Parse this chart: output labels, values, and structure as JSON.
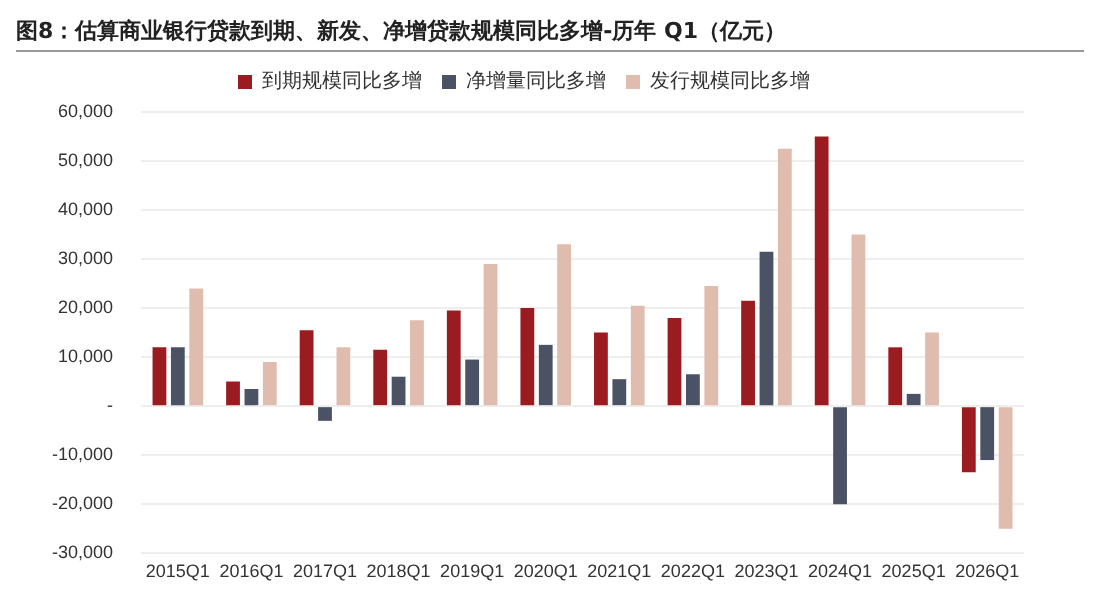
{
  "chart_data": {
    "type": "bar",
    "title": "图8：估算商业银行贷款到期、新发、净增贷款规模同比多增-历年 Q1（亿元）",
    "categories": [
      "2015Q1",
      "2016Q1",
      "2017Q1",
      "2018Q1",
      "2019Q1",
      "2020Q1",
      "2021Q1",
      "2022Q1",
      "2023Q1",
      "2024Q1",
      "2025Q1",
      "2026Q1"
    ],
    "series": [
      {
        "name": "到期规模同比多增",
        "color": "#9b1c20",
        "values": [
          12000,
          5000,
          15500,
          11500,
          19500,
          20000,
          15000,
          18000,
          21500,
          55000,
          12000,
          -13500
        ]
      },
      {
        "name": "净增量同比多增",
        "color": "#4a5263",
        "values": [
          12000,
          3500,
          -3000,
          6000,
          9500,
          12500,
          5500,
          6500,
          31500,
          -20000,
          2500,
          -11000
        ]
      },
      {
        "name": "发行规模同比多增",
        "color": "#e0bcae",
        "values": [
          24000,
          9000,
          12000,
          17500,
          29000,
          33000,
          20500,
          24500,
          52500,
          35000,
          15000,
          -25000
        ]
      }
    ],
    "ylim": [
      -30000,
      60000
    ],
    "yticks": [
      {
        "value": -30000,
        "label": "-30,000"
      },
      {
        "value": -20000,
        "label": "-20,000"
      },
      {
        "value": -10000,
        "label": "-10,000"
      },
      {
        "value": 0,
        "label": "-"
      },
      {
        "value": 10000,
        "label": "10,000"
      },
      {
        "value": 20000,
        "label": "20,000"
      },
      {
        "value": 30000,
        "label": "30,000"
      },
      {
        "value": 40000,
        "label": "40,000"
      },
      {
        "value": 50000,
        "label": "50,000"
      },
      {
        "value": 60000,
        "label": "60,000"
      }
    ],
    "grid": "y",
    "legend": "top"
  }
}
